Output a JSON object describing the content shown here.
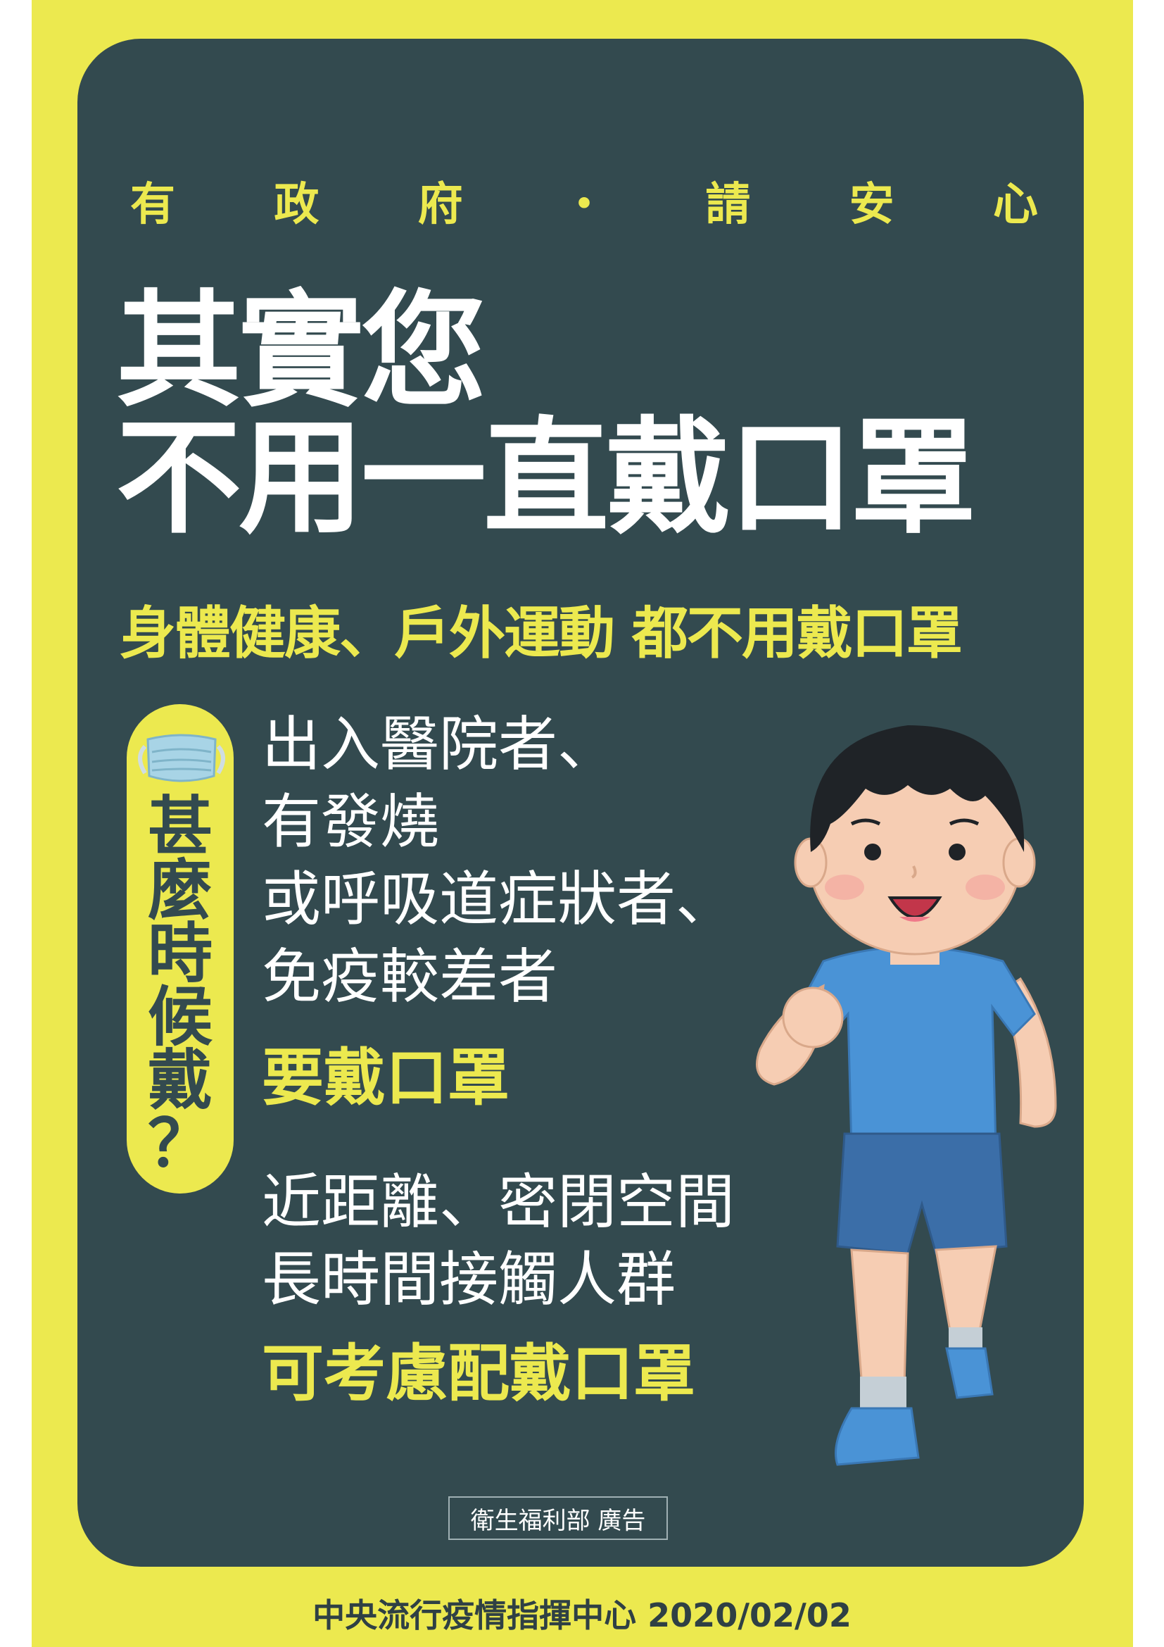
{
  "tagline": [
    "有",
    "政",
    "府",
    "・",
    "請",
    "安",
    "心"
  ],
  "headline": {
    "line1": "其實您",
    "line2": "不用一直戴口罩"
  },
  "subheadline": "身體健康、戶外運動 都不用戴口罩",
  "side_label": [
    "甚",
    "麼",
    "時",
    "候",
    "戴",
    "？"
  ],
  "block1": {
    "lines": [
      "出入醫院者、",
      "有發燒",
      "或呼吸道症狀者、",
      "免疫較差者"
    ],
    "emphasis": "要戴口罩"
  },
  "block2": {
    "lines": [
      "近距離、密閉空間",
      "長時間接觸人群"
    ],
    "emphasis": "可考慮配戴口罩"
  },
  "credit": "衛生福利部 廣告",
  "footer": "中央流行疫情指揮中心 2020/02/02",
  "colors": {
    "accent_yellow": "#ece94f",
    "panel": "#334a4f",
    "text_white": "#ffffff"
  },
  "icons": [
    "mask-icon",
    "running-boy-illustration"
  ]
}
